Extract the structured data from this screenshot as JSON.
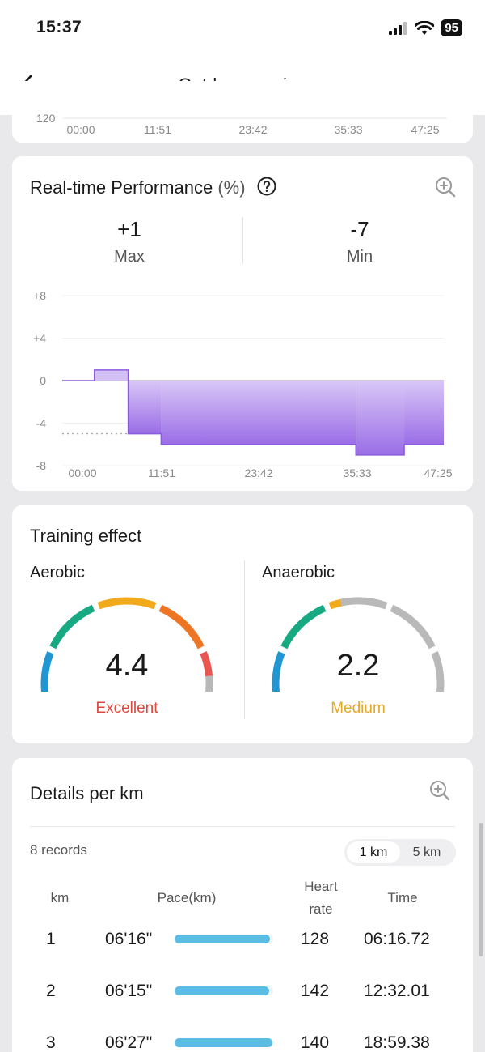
{
  "status_bar": {
    "time": "15:37",
    "battery": "95"
  },
  "nav": {
    "title": "Outdoor running"
  },
  "prev_chart": {
    "y_partial_label": "120",
    "x_ticks": [
      "00:00",
      "11:51",
      "23:42",
      "35:33",
      "47:25"
    ]
  },
  "performance": {
    "title": "Real-time Performance",
    "unit": "(%)",
    "max_value": "+1",
    "max_label": "Max",
    "min_value": "-7",
    "min_label": "Min",
    "chart_data": {
      "type": "area",
      "y_ticks": [
        "+8",
        "+4",
        "0",
        "-4",
        "-8"
      ],
      "x_ticks": [
        "00:00",
        "11:51",
        "23:42",
        "35:33",
        "47:25"
      ],
      "ylim": [
        -8,
        8
      ],
      "xlim_minutes": [
        0,
        47.42
      ],
      "steps": [
        {
          "from": 0,
          "to": 4,
          "value": 0
        },
        {
          "from": 4,
          "to": 8.2,
          "value": 1
        },
        {
          "from": 8.2,
          "to": 12.3,
          "value": -5
        },
        {
          "from": 12.3,
          "to": 36.5,
          "value": -6
        },
        {
          "from": 36.5,
          "to": 42.5,
          "value": -7
        },
        {
          "from": 42.5,
          "to": 47.42,
          "value": -6
        }
      ],
      "positive_color": "#d3c0f5",
      "negative_color": "#9a6de6"
    }
  },
  "training": {
    "title": "Training effect",
    "aerobic": {
      "label": "Aerobic",
      "value": "4.4",
      "status": "Excellent",
      "status_color": "#e0463c",
      "level": 4.4
    },
    "anaerobic": {
      "label": "Anaerobic",
      "value": "2.2",
      "status": "Medium",
      "status_color": "#e6a92a",
      "level": 2.2
    },
    "gauge_colors": [
      "#2196d3",
      "#16a982",
      "#f2aa1d",
      "#ee7524",
      "#ea5550"
    ],
    "gauge_inactive_color": "#b9b9b9"
  },
  "details": {
    "title": "Details per km",
    "records": "8 records",
    "segments": [
      "1 km",
      "5 km"
    ],
    "active_segment": "1 km",
    "headers": {
      "km": "km",
      "pace": "Pace(km)",
      "heart_1": "Heart",
      "heart_2": "rate",
      "time": "Time"
    },
    "rows": [
      {
        "km": "1",
        "pace": "06'16\"",
        "pace_fraction": 0.97,
        "heart_rate": "128",
        "time": "06:16.72"
      },
      {
        "km": "2",
        "pace": "06'15\"",
        "pace_fraction": 0.96,
        "heart_rate": "142",
        "time": "12:32.01"
      },
      {
        "km": "3",
        "pace": "06'27\"",
        "pace_fraction": 0.99,
        "heart_rate": "140",
        "time": "18:59.38"
      }
    ]
  }
}
